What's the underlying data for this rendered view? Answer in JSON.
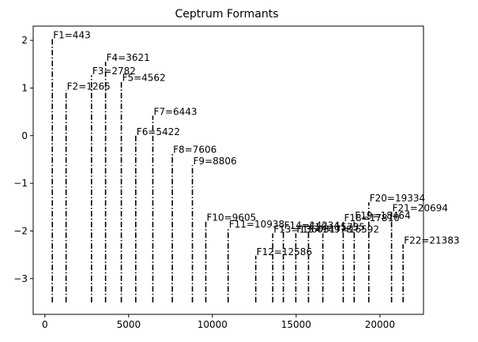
{
  "chart_data": {
    "type": "bar",
    "title": "Ceptrum Formants",
    "xlabel": "",
    "ylabel": "",
    "xlim": [
      -700,
      22600
    ],
    "ylim": [
      -3.75,
      2.3
    ],
    "baseline": -3.5,
    "grid": false,
    "x_ticks": [
      0,
      5000,
      10000,
      15000,
      20000
    ],
    "x_tick_labels": [
      "0",
      "5000",
      "10000",
      "15000",
      "20000"
    ],
    "y_ticks": [
      -3,
      -2,
      -1,
      0,
      1,
      2
    ],
    "y_tick_labels": [
      "−3",
      "−2",
      "−1",
      "0",
      "1",
      "2"
    ],
    "series": [
      {
        "x": [
          443,
          1265,
          2782,
          3621,
          4562,
          5422,
          6443,
          7606,
          8806,
          9605,
          10938,
          12586,
          13603,
          14234,
          14978,
          15735,
          16592,
          17810,
          18464,
          19334,
          20694,
          21383
        ],
        "values": [
          2.03,
          0.95,
          1.27,
          1.55,
          1.13,
          0.0,
          0.42,
          -0.38,
          -0.62,
          -1.8,
          -1.94,
          -2.52,
          -2.05,
          -1.97,
          -2.05,
          -2.0,
          -2.05,
          -1.81,
          -1.76,
          -1.4,
          -1.6,
          -2.28
        ],
        "labels": [
          "F1=443",
          "F2=1265",
          "F3=2782",
          "F4=3621",
          "F5=4562",
          "F6=5422",
          "F7=6443",
          "F8=7606",
          "F9=8806",
          "F10=9605",
          "F11=10938",
          "F12=12586",
          "F13=13603",
          "F14=14234",
          "F15=14978",
          "F16=15735",
          "F17=16592",
          "F18=17810",
          "F19=18464",
          "F20=19334",
          "F21=20694",
          "F22=21383"
        ]
      }
    ]
  }
}
